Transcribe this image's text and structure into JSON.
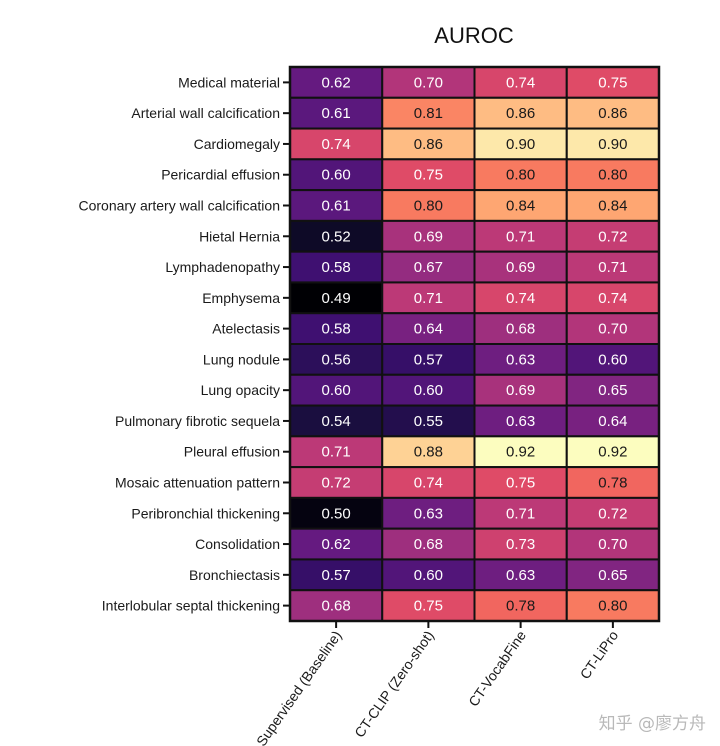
{
  "chart_data": {
    "type": "heatmap",
    "title": "AUROC",
    "xlabel": "",
    "ylabel": "",
    "colormap": "magma",
    "vmin": 0.49,
    "vmax": 0.92,
    "columns": [
      "Supervised (Baseline)",
      "CT-CLIP (Zero-shot)",
      "CT-VocabFine",
      "CT-LiPro"
    ],
    "rows": [
      "Medical material",
      "Arterial wall calcification",
      "Cardiomegaly",
      "Pericardial effusion",
      "Coronary artery wall calcification",
      "Hietal Hernia",
      "Lymphadenopathy",
      "Emphysema",
      "Atelectasis",
      "Lung nodule",
      "Lung opacity",
      "Pulmonary fibrotic sequela",
      "Pleural effusion",
      "Mosaic attenuation pattern",
      "Peribronchial thickening",
      "Consolidation",
      "Bronchiectasis",
      "Interlobular septal thickening"
    ],
    "values": [
      [
        0.62,
        0.7,
        0.74,
        0.75
      ],
      [
        0.61,
        0.81,
        0.86,
        0.86
      ],
      [
        0.74,
        0.86,
        0.9,
        0.9
      ],
      [
        0.6,
        0.75,
        0.8,
        0.8
      ],
      [
        0.61,
        0.8,
        0.84,
        0.84
      ],
      [
        0.52,
        0.69,
        0.71,
        0.72
      ],
      [
        0.58,
        0.67,
        0.69,
        0.71
      ],
      [
        0.49,
        0.71,
        0.74,
        0.74
      ],
      [
        0.58,
        0.64,
        0.68,
        0.7
      ],
      [
        0.56,
        0.57,
        0.63,
        0.6
      ],
      [
        0.6,
        0.6,
        0.69,
        0.65
      ],
      [
        0.54,
        0.55,
        0.63,
        0.64
      ],
      [
        0.71,
        0.88,
        0.92,
        0.92
      ],
      [
        0.72,
        0.74,
        0.75,
        0.78
      ],
      [
        0.5,
        0.63,
        0.71,
        0.72
      ],
      [
        0.62,
        0.68,
        0.73,
        0.7
      ],
      [
        0.57,
        0.6,
        0.63,
        0.65
      ],
      [
        0.68,
        0.75,
        0.78,
        0.8
      ]
    ]
  },
  "watermark": "知乎 @廖方舟"
}
